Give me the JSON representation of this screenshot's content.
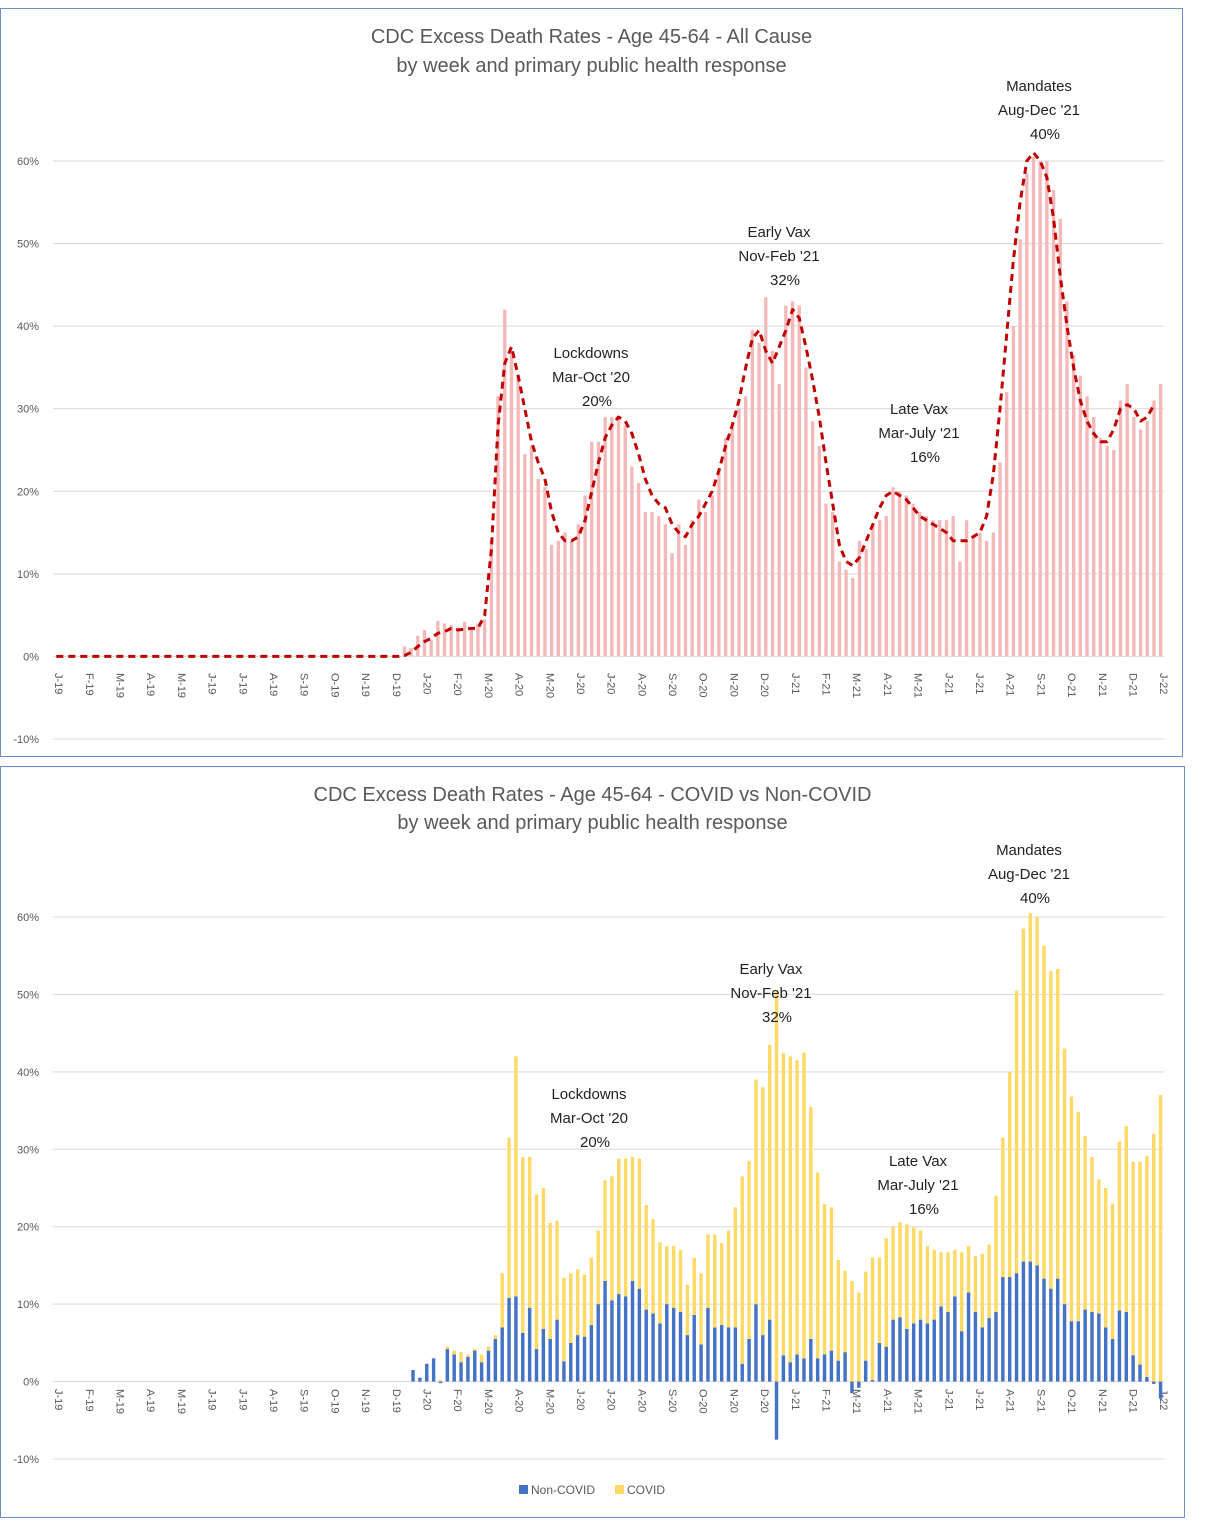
{
  "chart_data": [
    {
      "type": "bar",
      "title": "CDC Excess Death Rates - Age 45-64 - All Cause",
      "subtitle": "by week and primary public health response",
      "ylim": [
        -0.1,
        0.6
      ],
      "yticks": [
        "-10%",
        "0%",
        "10%",
        "20%",
        "30%",
        "40%",
        "50%",
        "60%"
      ],
      "x_labels": [
        "J-19",
        "F-19",
        "M-19",
        "A-19",
        "M-19",
        "J-19",
        "J-19",
        "A-19",
        "S-19",
        "O-19",
        "N-19",
        "D-19",
        "J-20",
        "F-20",
        "M-20",
        "A-20",
        "M-20",
        "J-20",
        "J-20",
        "A-20",
        "S-20",
        "O-20",
        "N-20",
        "D-20",
        "J-21",
        "F-21",
        "M-21",
        "A-21",
        "M-21",
        "J-21",
        "J-21",
        "A-21",
        "S-21",
        "O-21",
        "N-21",
        "D-21",
        "J-22"
      ],
      "grid": true,
      "bar_color": "#f4b8b8",
      "line_color": "#c00000",
      "series": [
        {
          "values": [
            0,
            0,
            0,
            0,
            0,
            0,
            0,
            0,
            0,
            0,
            0,
            0,
            0,
            0,
            0,
            0,
            0,
            0,
            0,
            0,
            0,
            0,
            0,
            0,
            0,
            0,
            0,
            0,
            0,
            0,
            0,
            0,
            0,
            0,
            0,
            0,
            0,
            0,
            0,
            0,
            0,
            0,
            0,
            0,
            0,
            0,
            0,
            0,
            0,
            0,
            0,
            0,
            0.012,
            0.01,
            0.025,
            0.032,
            0.02,
            0.043,
            0.04,
            0.038,
            0.035,
            0.042,
            0.035,
            0.04,
            0.045,
            0.14,
            0.315,
            0.42,
            0.37,
            0.34,
            0.245,
            0.255,
            0.215,
            0.205,
            0.135,
            0.14,
            0.15,
            0.14,
            0.16,
            0.195,
            0.26,
            0.26,
            0.29,
            0.29,
            0.29,
            0.28,
            0.23,
            0.21,
            0.175,
            0.175,
            0.17,
            0.16,
            0.125,
            0.16,
            0.135,
            0.165,
            0.19,
            0.175,
            0.195,
            0.225,
            0.265,
            0.28,
            0.3,
            0.315,
            0.395,
            0.38,
            0.435,
            0.37,
            0.33,
            0.425,
            0.43,
            0.425,
            0.35,
            0.285,
            0.255,
            0.185,
            0.175,
            0.115,
            0.105,
            0.095,
            0.14,
            0.13,
            0.16,
            0.165,
            0.17,
            0.205,
            0.2,
            0.195,
            0.185,
            0.175,
            0.17,
            0.165,
            0.165,
            0.165,
            0.17,
            0.115,
            0.165,
            0.145,
            0.15,
            0.14,
            0.15,
            0.235,
            0.32,
            0.4,
            0.505,
            0.585,
            0.605,
            0.6,
            0.6,
            0.565,
            0.53,
            0.43,
            0.365,
            0.34,
            0.315,
            0.29,
            0.265,
            0.255,
            0.25,
            0.31,
            0.33,
            0.29,
            0.275,
            0.285,
            0.31,
            0.33
          ]
        },
        {
          "values": [
            0,
            0,
            0,
            0,
            0,
            0,
            0,
            0,
            0,
            0,
            0,
            0,
            0,
            0,
            0,
            0,
            0,
            0,
            0,
            0,
            0,
            0,
            0,
            0,
            0,
            0,
            0,
            0,
            0,
            0,
            0,
            0,
            0,
            0,
            0,
            0,
            0,
            0,
            0,
            0,
            0,
            0,
            0,
            0,
            0,
            0,
            0,
            0,
            0,
            0,
            0,
            0,
            0.001,
            0.005,
            0.012,
            0.018,
            0.022,
            0.028,
            0.03,
            0.034,
            0.032,
            0.033,
            0.034,
            0.034,
            0.05,
            0.13,
            0.28,
            0.355,
            0.375,
            0.34,
            0.3,
            0.26,
            0.235,
            0.215,
            0.175,
            0.15,
            0.14,
            0.14,
            0.145,
            0.165,
            0.2,
            0.235,
            0.265,
            0.28,
            0.29,
            0.285,
            0.27,
            0.245,
            0.215,
            0.195,
            0.185,
            0.18,
            0.16,
            0.15,
            0.145,
            0.16,
            0.17,
            0.185,
            0.2,
            0.225,
            0.255,
            0.28,
            0.31,
            0.35,
            0.385,
            0.395,
            0.37,
            0.355,
            0.375,
            0.395,
            0.42,
            0.41,
            0.375,
            0.335,
            0.29,
            0.235,
            0.185,
            0.135,
            0.115,
            0.11,
            0.12,
            0.14,
            0.16,
            0.18,
            0.195,
            0.2,
            0.195,
            0.19,
            0.18,
            0.17,
            0.165,
            0.16,
            0.155,
            0.15,
            0.14,
            0.14,
            0.14,
            0.145,
            0.15,
            0.17,
            0.22,
            0.3,
            0.39,
            0.48,
            0.55,
            0.6,
            0.61,
            0.6,
            0.58,
            0.53,
            0.46,
            0.4,
            0.35,
            0.31,
            0.285,
            0.27,
            0.26,
            0.26,
            0.275,
            0.3,
            0.305,
            0.3,
            0.285,
            0.29,
            0.305
          ]
        }
      ],
      "annotations": [
        {
          "lines": [
            "Lockdowns",
            "Mar-Oct '20",
            "20%"
          ]
        },
        {
          "lines": [
            "Early Vax",
            "Nov-Feb '21",
            "32%"
          ]
        },
        {
          "lines": [
            "Late Vax",
            "Mar-July '21",
            "16%"
          ]
        },
        {
          "lines": [
            "Mandates",
            "Aug-Dec '21",
            "40%"
          ]
        }
      ]
    },
    {
      "type": "bar",
      "title": "CDC Excess Death Rates - Age 45-64 - COVID vs Non-COVID",
      "subtitle": "by week and primary public health response",
      "ylim": [
        -0.1,
        0.6
      ],
      "yticks": [
        "-10%",
        "0%",
        "10%",
        "20%",
        "30%",
        "40%",
        "50%",
        "60%"
      ],
      "x_labels": [
        "J-19",
        "F-19",
        "M-19",
        "A-19",
        "M-19",
        "J-19",
        "J-19",
        "A-19",
        "S-19",
        "O-19",
        "N-19",
        "D-19",
        "J-20",
        "F-20",
        "M-20",
        "A-20",
        "M-20",
        "J-20",
        "J-20",
        "A-20",
        "S-20",
        "O-20",
        "N-20",
        "D-20",
        "J-21",
        "F-21",
        "M-21",
        "A-21",
        "M-21",
        "J-21",
        "J-21",
        "A-21",
        "S-21",
        "O-21",
        "N-21",
        "D-21",
        "J-22"
      ],
      "grid": true,
      "legend_position": "bottom",
      "series": [
        {
          "name": "Non-COVID",
          "color": "#4472c4",
          "values": [
            0,
            0,
            0,
            0,
            0,
            0,
            0,
            0,
            0,
            0,
            0,
            0,
            0,
            0,
            0,
            0,
            0,
            0,
            0,
            0,
            0,
            0,
            0,
            0,
            0,
            0,
            0,
            0,
            0,
            0,
            0,
            0,
            0,
            0,
            0,
            0,
            0,
            0,
            0,
            0,
            0,
            0,
            0,
            0,
            0,
            0,
            0,
            0,
            0,
            0,
            0,
            0,
            0.015,
            0.005,
            0.023,
            0.03,
            -0.002,
            0.042,
            0.035,
            0.025,
            0.032,
            0.04,
            0.025,
            0.04,
            0.055,
            0.07,
            0.108,
            0.11,
            0.063,
            0.095,
            0.042,
            0.068,
            0.055,
            0.08,
            0.026,
            0.05,
            0.06,
            0.058,
            0.073,
            0.1,
            0.13,
            0.105,
            0.113,
            0.11,
            0.13,
            0.12,
            0.093,
            0.088,
            0.075,
            0.1,
            0.095,
            0.09,
            0.06,
            0.086,
            0.048,
            0.095,
            0.07,
            0.073,
            0.07,
            0.07,
            0.023,
            0.055,
            0.1,
            0.06,
            0.08,
            -0.075,
            0.034,
            0.025,
            0.035,
            0.03,
            0.055,
            0.03,
            0.035,
            0.04,
            0.027,
            0.038,
            -0.015,
            -0.008,
            0.027,
            0.002,
            0.05,
            0.045,
            0.08,
            0.083,
            0.068,
            0.075,
            0.08,
            0.075,
            0.08,
            0.097,
            0.09,
            0.11,
            0.065,
            0.115,
            0.09,
            0.07,
            0.082,
            0.09,
            0.135,
            0.135,
            0.14,
            0.155,
            0.155,
            0.15,
            0.133,
            0.12,
            0.133,
            0.1,
            0.078,
            0.078,
            0.093,
            0.09,
            0.088,
            0.07,
            0.055,
            0.092,
            0.09,
            0.034,
            0.022,
            0.006,
            -0.003,
            -0.022
          ]
        },
        {
          "name": "COVID",
          "color": "#ffd966",
          "values": [
            0,
            0,
            0,
            0,
            0,
            0,
            0,
            0,
            0,
            0,
            0,
            0,
            0,
            0,
            0,
            0,
            0,
            0,
            0,
            0,
            0,
            0,
            0,
            0,
            0,
            0,
            0,
            0,
            0,
            0,
            0,
            0,
            0,
            0,
            0,
            0,
            0,
            0,
            0,
            0,
            0,
            0,
            0,
            0,
            0,
            0,
            0,
            0,
            0,
            0,
            0,
            0,
            0,
            0,
            0,
            0,
            0.002,
            0.003,
            0.005,
            0.013,
            0.003,
            0.002,
            0.01,
            0.005,
            0.005,
            0.07,
            0.207,
            0.31,
            0.227,
            0.195,
            0.2,
            0.182,
            0.15,
            0.128,
            0.108,
            0.09,
            0.085,
            0.08,
            0.087,
            0.095,
            0.13,
            0.16,
            0.175,
            0.178,
            0.16,
            0.168,
            0.135,
            0.122,
            0.105,
            0.075,
            0.08,
            0.08,
            0.065,
            0.074,
            0.092,
            0.095,
            0.12,
            0.106,
            0.125,
            0.155,
            0.242,
            0.23,
            0.29,
            0.32,
            0.355,
            0.505,
            0.39,
            0.395,
            0.38,
            0.395,
            0.3,
            0.24,
            0.194,
            0.185,
            0.13,
            0.105,
            0.13,
            0.115,
            0.115,
            0.158,
            0.11,
            0.14,
            0.12,
            0.123,
            0.135,
            0.124,
            0.115,
            0.1,
            0.09,
            0.07,
            0.077,
            0.06,
            0.102,
            0.06,
            0.072,
            0.095,
            0.095,
            0.15,
            0.18,
            0.265,
            0.365,
            0.43,
            0.45,
            0.45,
            0.43,
            0.41,
            0.4,
            0.33,
            0.29,
            0.27,
            0.224,
            0.2,
            0.173,
            0.18,
            0.175,
            0.218,
            0.24,
            0.25,
            0.262,
            0.285,
            0.32,
            0.37
          ]
        }
      ],
      "annotations": [
        {
          "lines": [
            "Lockdowns",
            "Mar-Oct '20",
            "20%"
          ]
        },
        {
          "lines": [
            "Early Vax",
            "Nov-Feb '21",
            "32%"
          ]
        },
        {
          "lines": [
            "Late Vax",
            "Mar-July '21",
            "16%"
          ]
        },
        {
          "lines": [
            "Mandates",
            "Aug-Dec '21",
            "40%"
          ]
        }
      ]
    }
  ]
}
